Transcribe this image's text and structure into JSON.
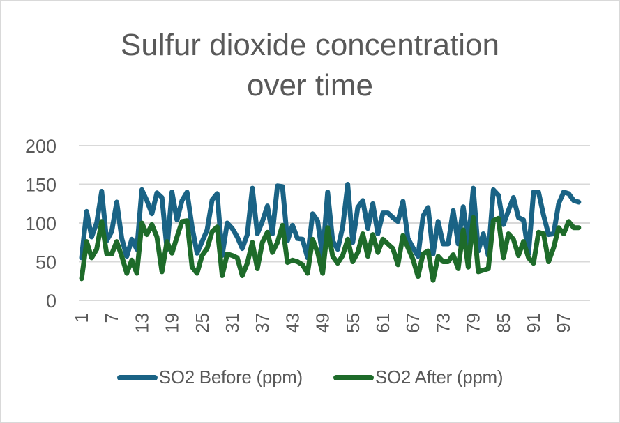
{
  "chart_data": {
    "type": "line",
    "title": "Sulfur dioxide concentration over time",
    "title_lines": [
      "Sulfur dioxide concentration",
      "over time"
    ],
    "xlabel": "",
    "ylabel": "",
    "ylim": [
      0,
      200
    ],
    "yticks": [
      0,
      50,
      100,
      150,
      200
    ],
    "xticks": [
      1,
      7,
      13,
      19,
      25,
      31,
      37,
      43,
      49,
      55,
      61,
      67,
      73,
      79,
      85,
      91,
      97
    ],
    "x_range": [
      1,
      100
    ],
    "grid": "horizontal",
    "legend_position": "bottom",
    "series": [
      {
        "name": "SO2 Before (ppm)",
        "color": "#1a6385",
        "values": [
          55,
          115,
          82,
          100,
          141,
          77,
          89,
          127,
          80,
          57,
          79,
          66,
          143,
          129,
          112,
          139,
          133,
          66,
          140,
          104,
          129,
          140,
          95,
          61,
          76,
          91,
          130,
          138,
          58,
          100,
          93,
          82,
          67,
          85,
          145,
          86,
          102,
          122,
          86,
          148,
          147,
          77,
          97,
          80,
          79,
          55,
          112,
          103,
          57,
          140,
          77,
          66,
          95,
          150,
          75,
          120,
          129,
          93,
          125,
          86,
          113,
          113,
          107,
          102,
          128,
          80,
          68,
          57,
          109,
          120,
          60,
          102,
          73,
          73,
          116,
          73,
          121,
          73,
          145,
          64,
          86,
          58,
          143,
          136,
          98,
          116,
          133,
          107,
          104,
          60,
          140,
          140,
          110,
          85,
          86,
          125,
          140,
          138,
          129,
          127
        ]
      },
      {
        "name": "SO2 After (ppm)",
        "color": "#1e6b2a",
        "values": [
          28,
          76,
          55,
          66,
          102,
          60,
          60,
          76,
          57,
          35,
          52,
          35,
          100,
          85,
          98,
          82,
          37,
          76,
          61,
          82,
          102,
          103,
          43,
          35,
          58,
          67,
          89,
          95,
          32,
          60,
          58,
          55,
          32,
          48,
          75,
          41,
          75,
          88,
          62,
          75,
          97,
          49,
          52,
          50,
          46,
          35,
          79,
          62,
          35,
          94,
          57,
          48,
          58,
          79,
          50,
          62,
          86,
          57,
          85,
          62,
          79,
          73,
          67,
          46,
          84,
          68,
          53,
          31,
          60,
          64,
          26,
          57,
          50,
          50,
          59,
          41,
          91,
          43,
          107,
          37,
          39,
          41,
          103,
          106,
          55,
          86,
          79,
          58,
          76,
          55,
          48,
          88,
          86,
          50,
          68,
          94,
          86,
          102,
          94,
          94
        ]
      }
    ]
  },
  "legend": {
    "items": [
      {
        "label": "SO2 Before (ppm)",
        "color": "#1a6385"
      },
      {
        "label": "SO2 After (ppm)",
        "color": "#1e6b2a"
      }
    ]
  },
  "style": {
    "text_color": "#595959",
    "grid_color": "#d9d9d9",
    "border_color": "#d9d9d9"
  }
}
